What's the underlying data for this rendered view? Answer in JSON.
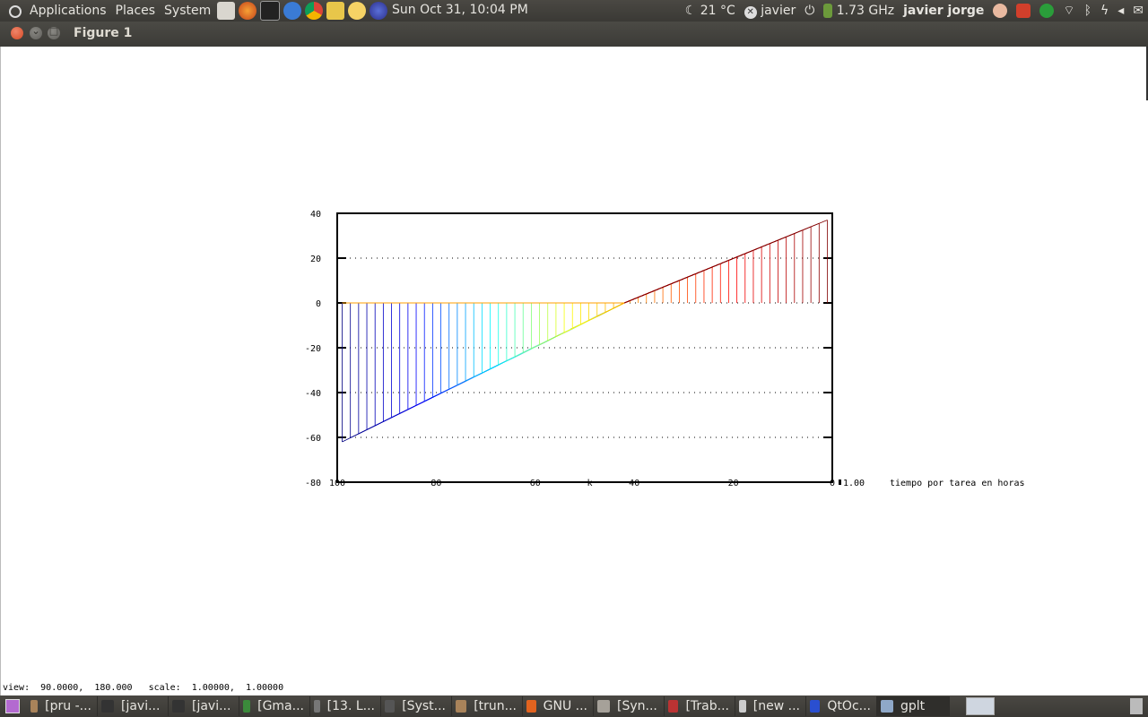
{
  "panel": {
    "menus": [
      "Applications",
      "Places",
      "System"
    ],
    "clock": "Sun Oct 31, 10:04 PM",
    "weather": "21 °C",
    "chat_user": "javier",
    "cpu_freq": "1.73 GHz",
    "user_name": "javier jorge",
    "launcher_icons": [
      "gedit-icon",
      "firefox-icon",
      "terminal-icon",
      "help-icon",
      "chrome-icon",
      "calc-icon",
      "pidgin-icon",
      "eclipse-icon"
    ],
    "colors": {
      "bg": "#3c3b37",
      "text": "#e6e4df"
    }
  },
  "window": {
    "title": "Figure 1"
  },
  "chart_data": {
    "type": "line",
    "title": "",
    "xlabel": "tiempo por tarea en horas",
    "ylabel": "",
    "x_marker_label": "k",
    "xlim": [
      100,
      0
    ],
    "ylim": [
      -80,
      40
    ],
    "x_ticks": [
      "100",
      "80",
      "60",
      "40",
      "20",
      "0"
    ],
    "y_ticks": [
      "40",
      "20",
      "0",
      "-20",
      "-40",
      "-60",
      "-80"
    ],
    "grid": "dotted horizontal",
    "series_description": "family of lines from k=0..100, value 0 at x=42, linear ramp from ≈-62 at x=100 to ≈37 at x=0, colored blue→cyan→yellow→red (jet colormap)",
    "series": {
      "count": 60,
      "x_start": 99,
      "x_end": 1,
      "zero_x": 42,
      "y_at_x_start": -62,
      "y_at_x_end": 37
    },
    "colormap": [
      "#000080",
      "#0000ff",
      "#00ffff",
      "#ffff00",
      "#ff8000",
      "#ff0000",
      "#800000"
    ],
    "extra_label_right": "1.00"
  },
  "status": {
    "view_label": "view:",
    "view_value": "90.0000,  180.000",
    "scale_label": "scale:",
    "scale_value": "1.00000,  1.00000"
  },
  "taskbar": {
    "items": [
      {
        "label": "[pru -...",
        "icon": "folder-icon"
      },
      {
        "label": "[javi...",
        "icon": "terminal-icon"
      },
      {
        "label": "[javi...",
        "icon": "terminal-icon"
      },
      {
        "label": "[Gma...",
        "icon": "chrome-icon"
      },
      {
        "label": "[13. L...",
        "icon": "film-icon"
      },
      {
        "label": "[Syst...",
        "icon": "monitor-icon"
      },
      {
        "label": "[trun...",
        "icon": "folder-icon"
      },
      {
        "label": "GNU ...",
        "icon": "firefox-icon"
      },
      {
        "label": "[Syn...",
        "icon": "package-icon"
      },
      {
        "label": "[Trab...",
        "icon": "pdf-icon"
      },
      {
        "label": "[new ...",
        "icon": "text-editor-icon"
      },
      {
        "label": "QtOc...",
        "icon": "qtoctave-icon"
      },
      {
        "label": "gplt",
        "icon": "window-icon"
      }
    ]
  }
}
